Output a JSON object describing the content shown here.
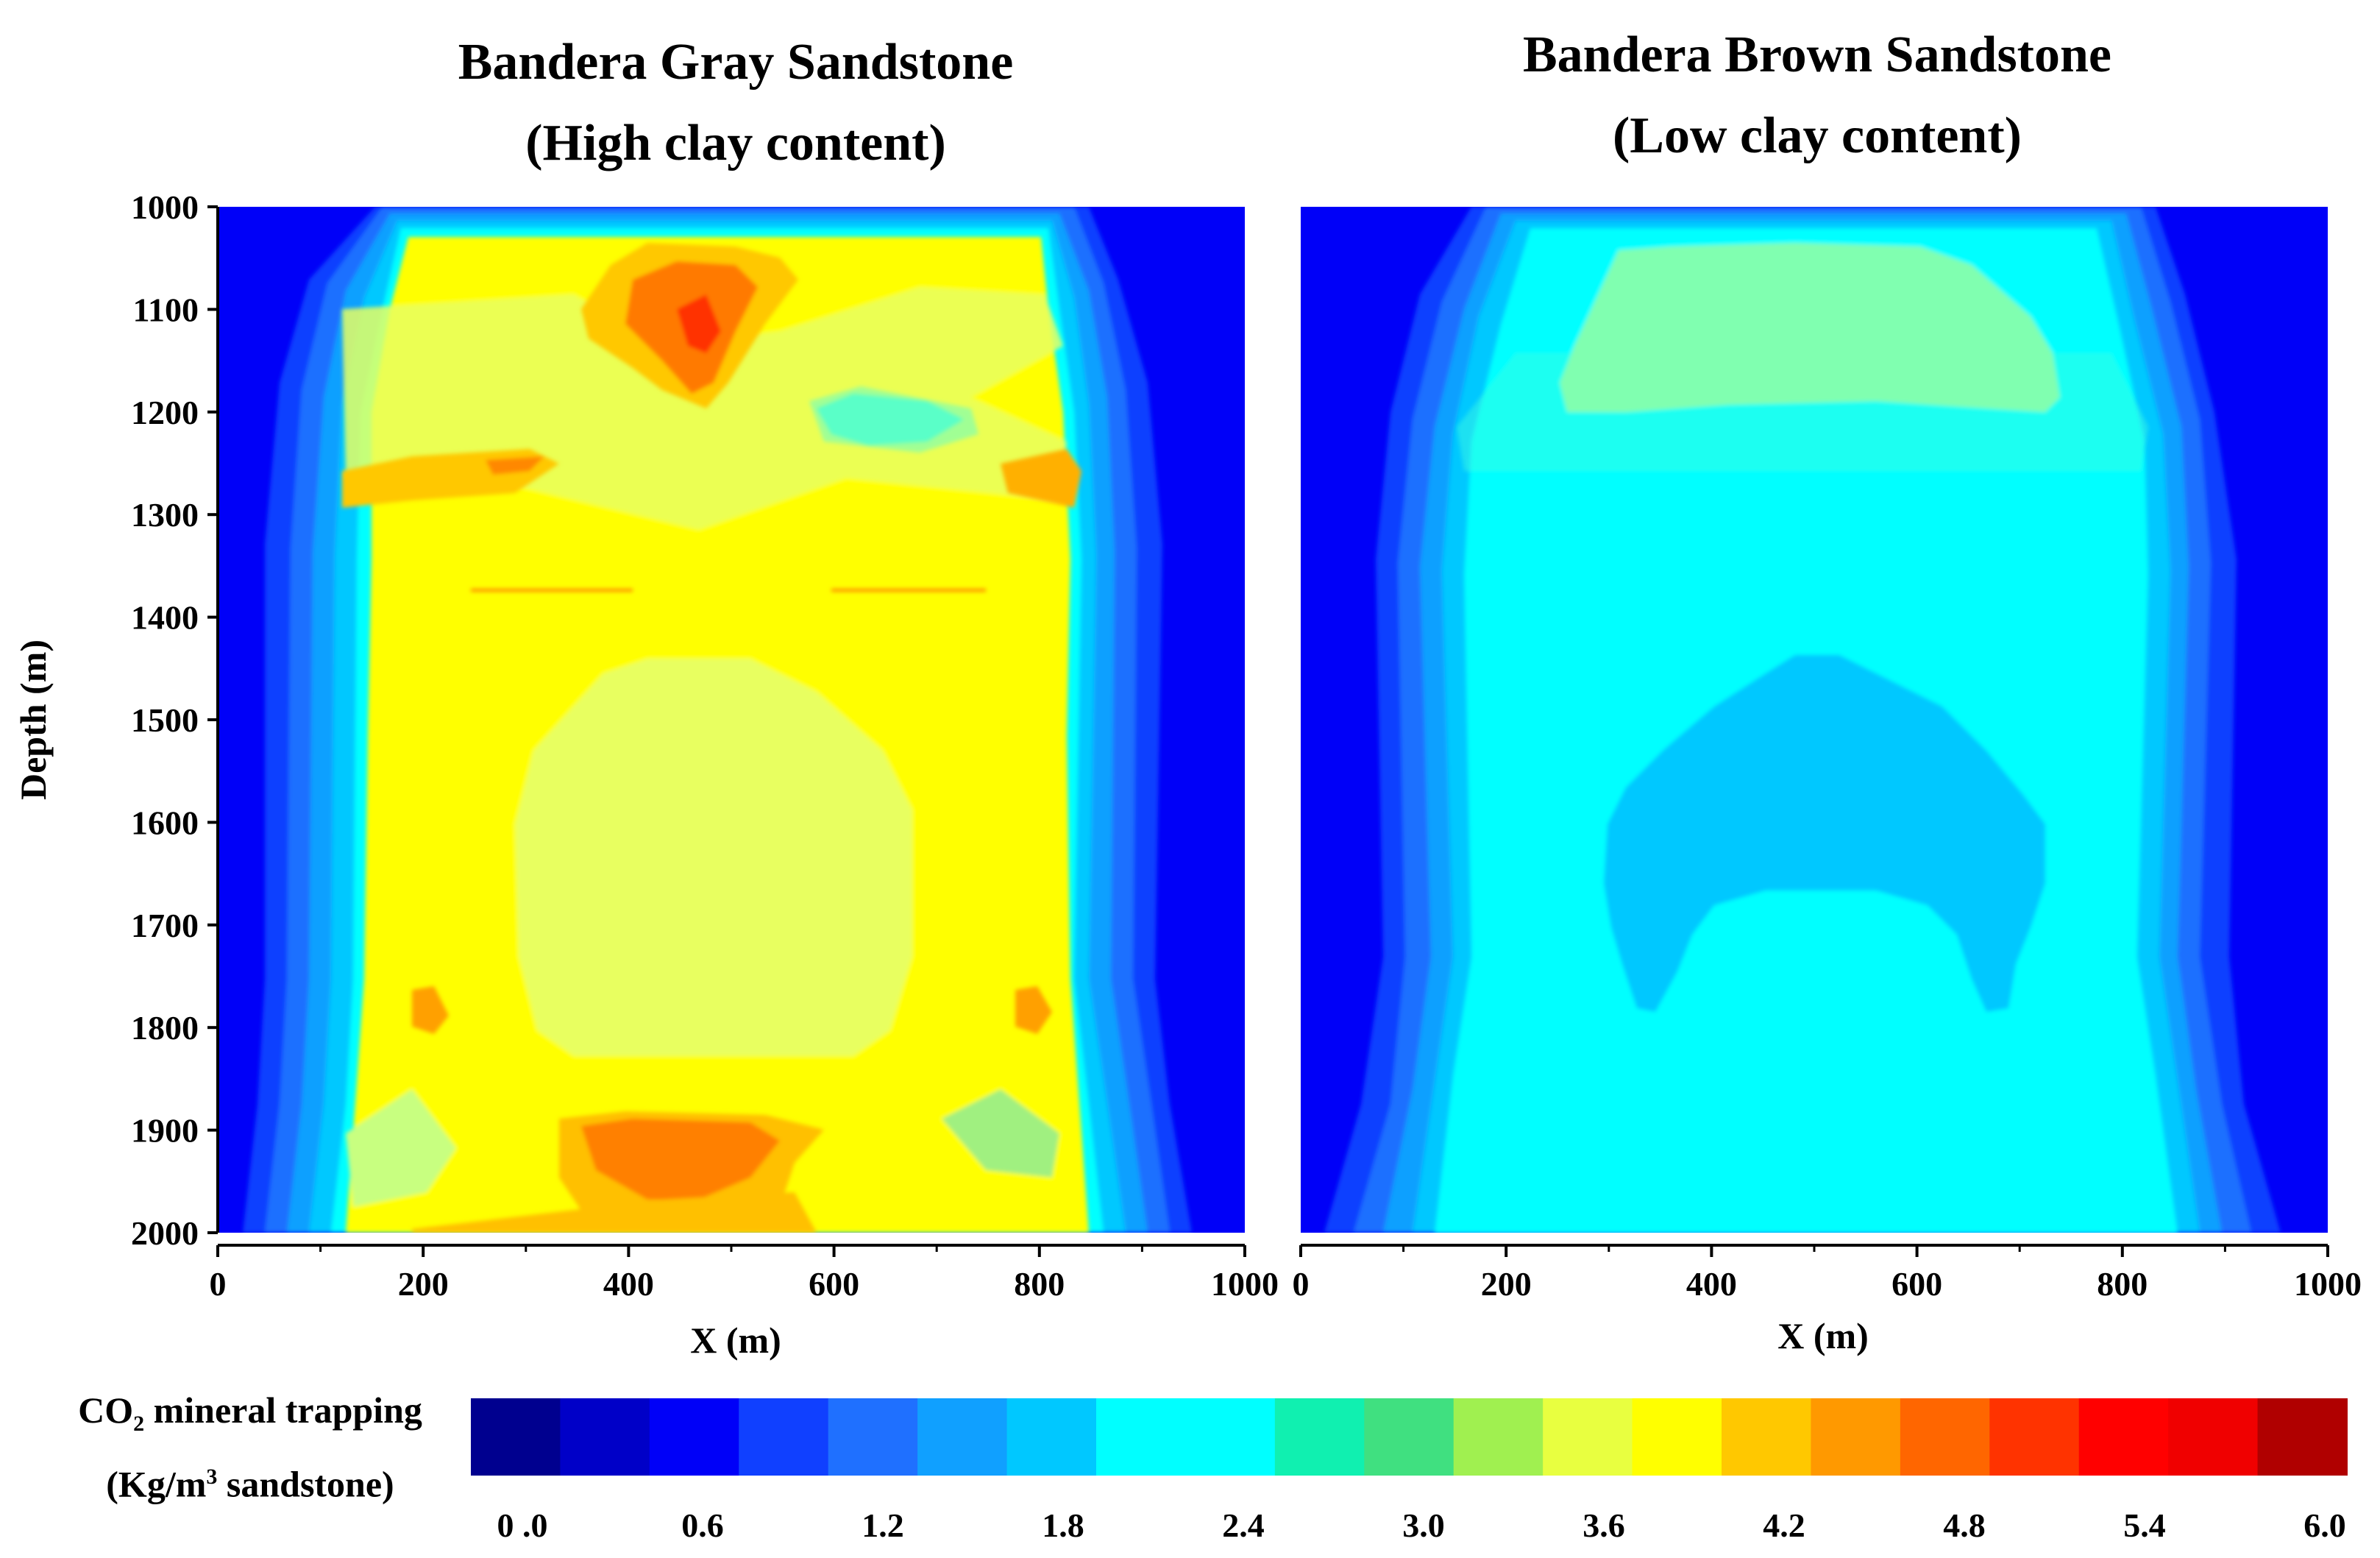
{
  "chart_data": [
    {
      "type": "heatmap",
      "title": "Bandera Gray Sandstone",
      "subtitle": "(High clay content)",
      "xlabel": "X (m)",
      "ylabel": "Depth (m)",
      "xlim": [
        0,
        1000
      ],
      "ylim": [
        1000,
        2000
      ],
      "y_inverted": true,
      "x_ticks": [
        "0",
        "200",
        "400",
        "600",
        "800",
        "1000"
      ],
      "y_ticks": [
        "1000",
        "1100",
        "1200",
        "1300",
        "1400",
        "1500",
        "1600",
        "1700",
        "1800",
        "1900",
        "2000"
      ],
      "regions": [
        {
          "value": 3.9,
          "description": "broad central plume"
        },
        {
          "value": 3.5,
          "description": "central core at depth 1460-1720 m, x 300-700 m"
        },
        {
          "value": 5.0,
          "description": "hotspot near x 470 m, depth 1120 m"
        },
        {
          "value": 4.8,
          "description": "hotspot near x 460 m, depth 1920 m"
        },
        {
          "value": 4.4,
          "description": "lenses near depth 1270 m at both edges"
        },
        {
          "value": 2.6,
          "description": "low lens near x 650 m, depth 1210 m"
        },
        {
          "value": 0.4,
          "description": "lateral margins x < 80 m and x > 920 m"
        }
      ]
    },
    {
      "type": "heatmap",
      "title": "Bandera Brown Sandstone",
      "subtitle": "(Low clay content)",
      "xlabel": "X (m)",
      "ylabel": "",
      "xlim": [
        0,
        1000
      ],
      "ylim": [
        1000,
        2000
      ],
      "y_inverted": true,
      "x_ticks": [
        "0",
        "200",
        "400",
        "600",
        "800",
        "1000"
      ],
      "regions": [
        {
          "value": 2.3,
          "description": "broad central plume"
        },
        {
          "value": 2.9,
          "description": "upper lens at depth 1040-1210 m, x 260-740 m"
        },
        {
          "value": 1.9,
          "description": "arch-shaped region at depth 1440-1790 m, x 300-700 m"
        },
        {
          "value": 0.4,
          "description": "lateral margins x < 80 m and x > 920 m"
        }
      ]
    }
  ],
  "colorbar": {
    "label_line1": "CO",
    "label_sub": "2",
    "label_line1_rest": " mineral trapping",
    "label_line2_pre": "(Kg/m",
    "label_sup": "3",
    "label_line2_post": " sandstone)",
    "min": 0.0,
    "max": 6.0,
    "tick_labels": [
      "0 .0",
      "0.6",
      "1.2",
      "1.8",
      "2.4",
      "3.0",
      "3.6",
      "4.2",
      "4.8",
      "5.4",
      "6.0"
    ],
    "colors": [
      "#00008f",
      "#0000c8",
      "#0000f8",
      "#1040ff",
      "#1f70ff",
      "#10a0ff",
      "#00c8ff",
      "#00ffff",
      "#00ffff",
      "#10f0b0",
      "#40e080",
      "#a0f050",
      "#e8ff40",
      "#ffff00",
      "#ffc800",
      "#ff9900",
      "#ff6600",
      "#ff3300",
      "#ff0000",
      "#f00000",
      "#b00000"
    ]
  }
}
